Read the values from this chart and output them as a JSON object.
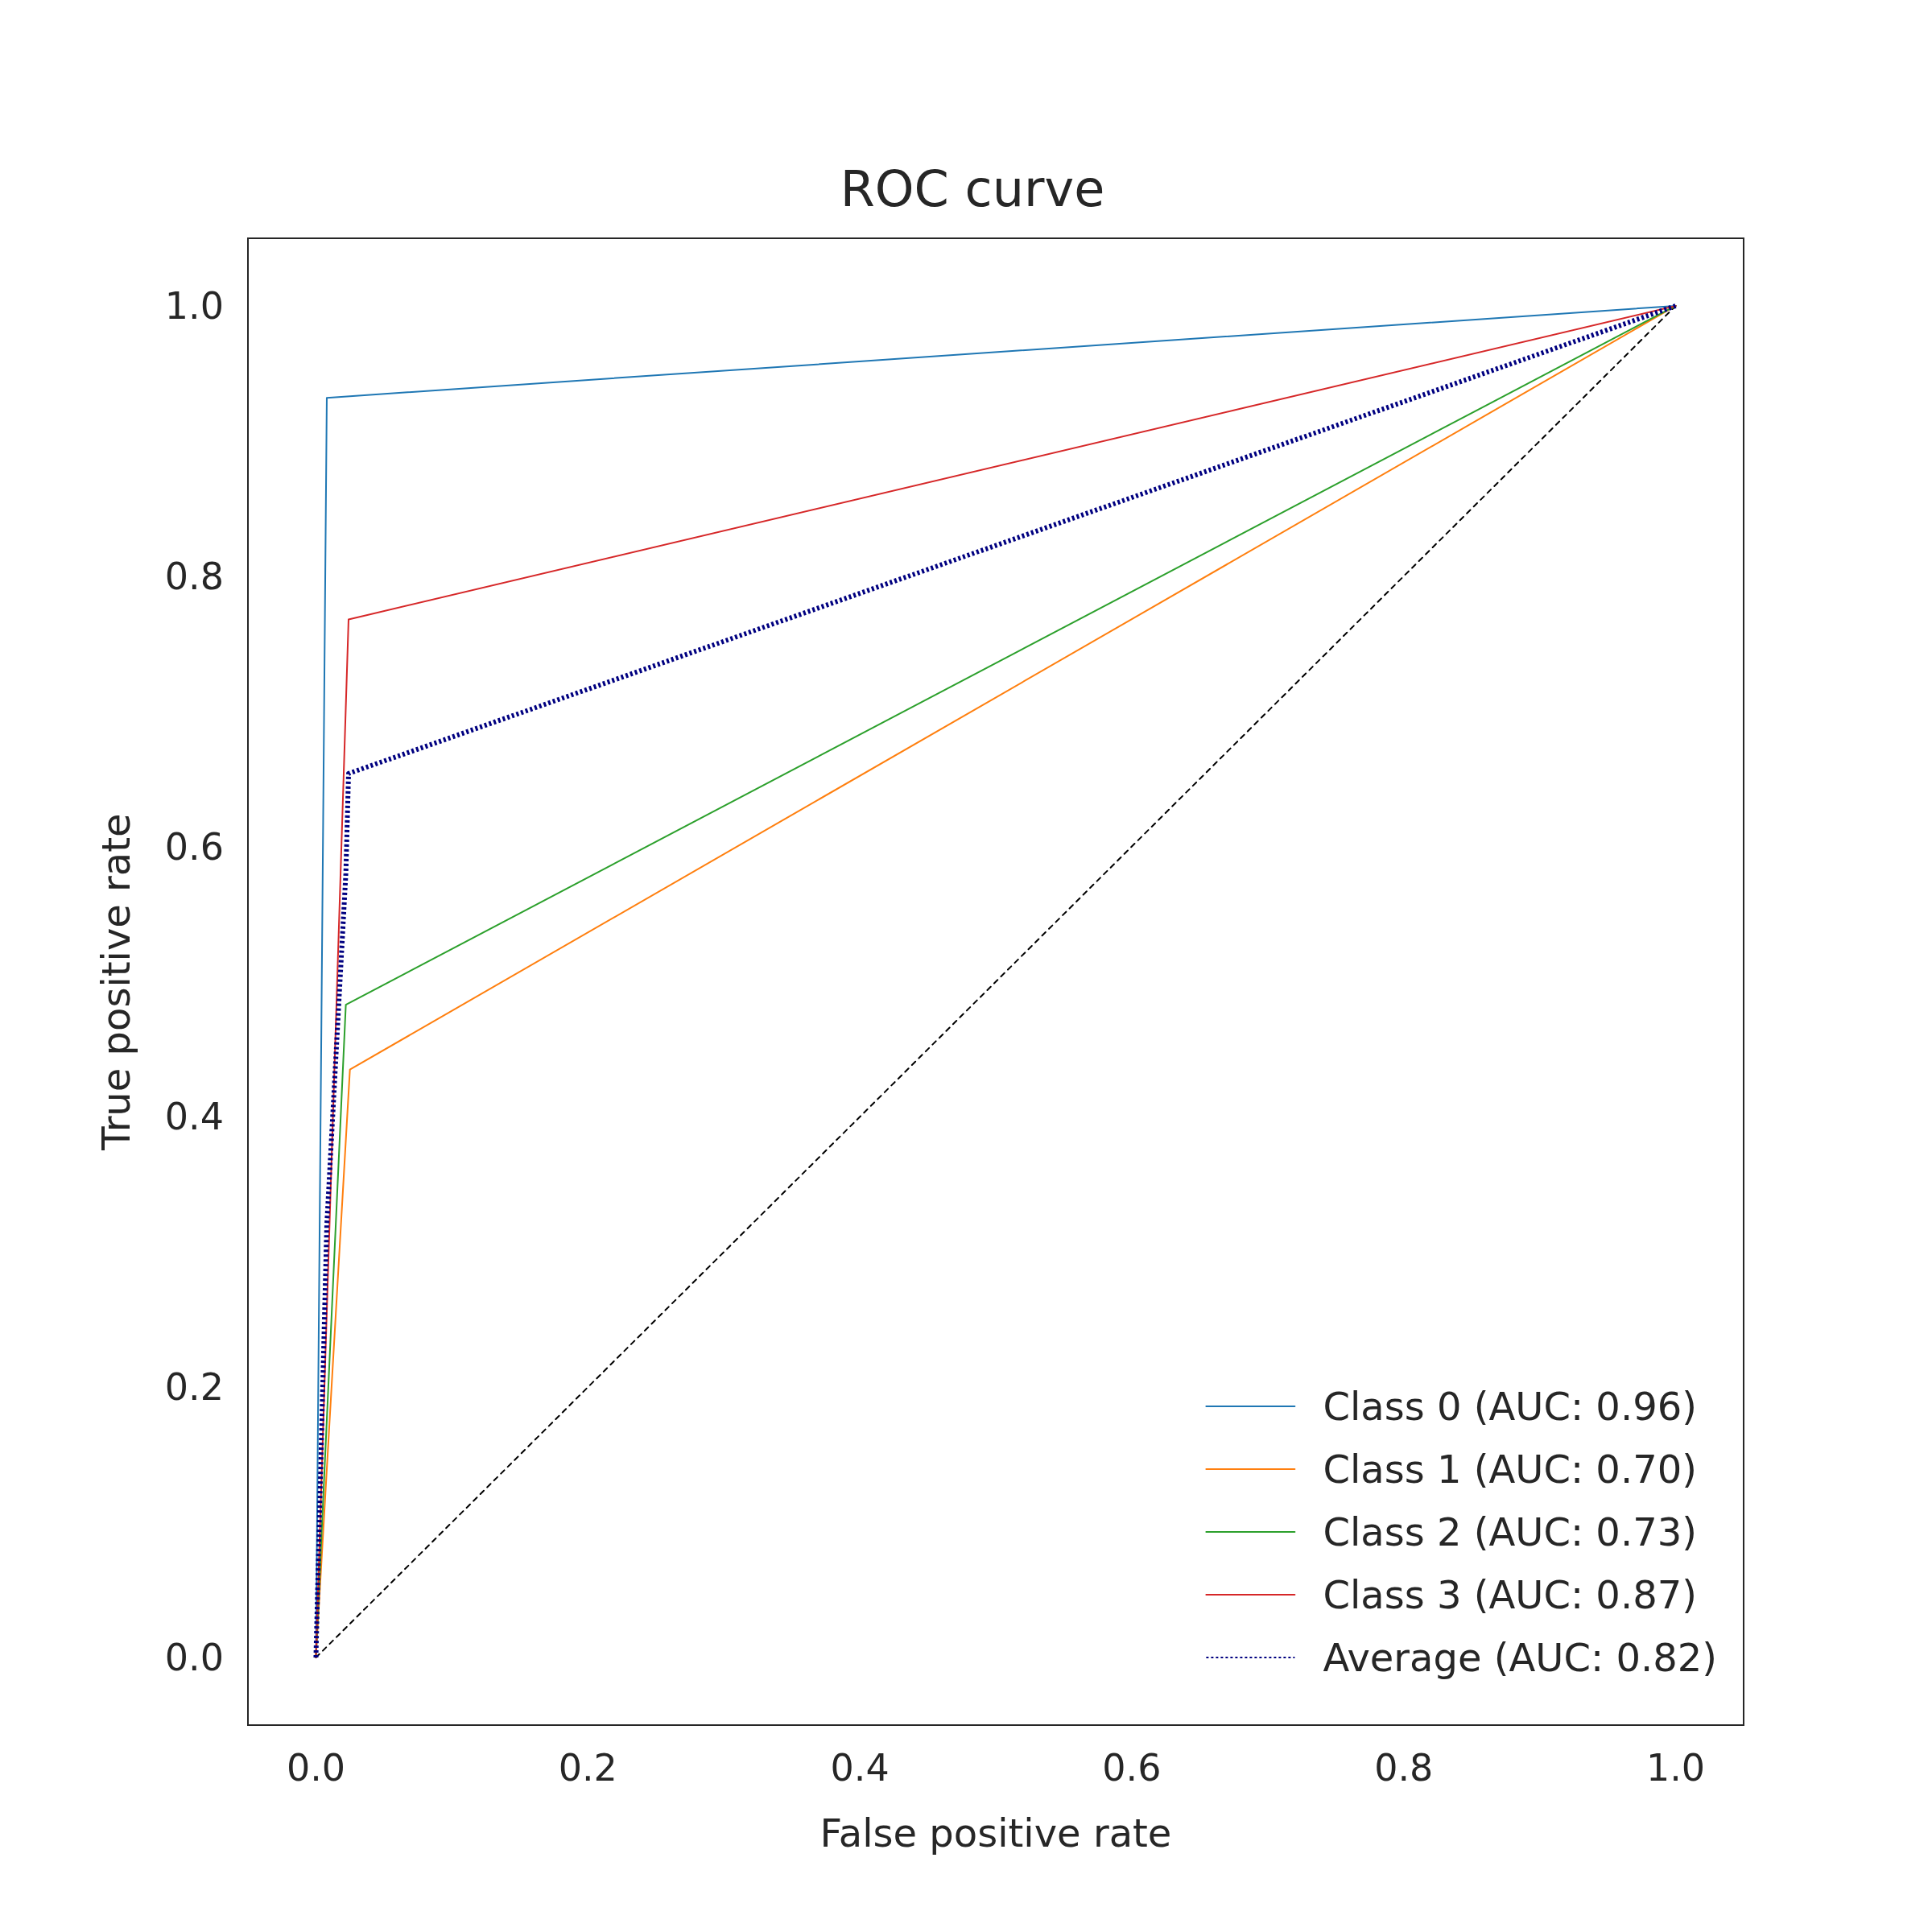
{
  "chart_data": {
    "type": "line",
    "title": "ROC curve",
    "xlabel": "False positive rate",
    "ylabel": "True positive rate",
    "xlim": [
      -0.05,
      1.05
    ],
    "ylim": [
      -0.05,
      1.05
    ],
    "xticks": [
      {
        "value": 0,
        "label": "0.0"
      },
      {
        "value": 0.2,
        "label": "0.2"
      },
      {
        "value": 0.4,
        "label": "0.4"
      },
      {
        "value": 0.6,
        "label": "0.6"
      },
      {
        "value": 0.8,
        "label": "0.8"
      },
      {
        "value": 1,
        "label": "1.0"
      }
    ],
    "yticks": [
      {
        "value": 0,
        "label": "0.0"
      },
      {
        "value": 0.2,
        "label": "0.2"
      },
      {
        "value": 0.4,
        "label": "0.4"
      },
      {
        "value": 0.6,
        "label": "0.6"
      },
      {
        "value": 0.8,
        "label": "0.8"
      },
      {
        "value": 1,
        "label": "1.0"
      }
    ],
    "grid": false,
    "legend": "bottom right",
    "marker": "none",
    "series": [
      {
        "name": "Class 0 (AUC: 0.96)",
        "color": "#1f77b4",
        "x": [
          0,
          0.008,
          1
        ],
        "values": [
          0,
          0.932,
          1
        ]
      },
      {
        "name": "Class 1 (AUC: 0.70)",
        "color": "#ff7f0e",
        "x": [
          0,
          0.025,
          1
        ],
        "values": [
          0,
          0.435,
          1
        ]
      },
      {
        "name": "Class 2 (AUC: 0.73)",
        "color": "#2ca02c",
        "x": [
          0,
          0.022,
          1
        ],
        "values": [
          0,
          0.483,
          1
        ]
      },
      {
        "name": "Class 3 (AUC: 0.87)",
        "color": "#d62728",
        "x": [
          0,
          0.024,
          1
        ],
        "values": [
          0,
          0.768,
          1
        ]
      },
      {
        "name": "Average (AUC: 0.82)",
        "color": "#000080",
        "line_style": "dotted",
        "x": [
          0,
          0.008,
          0.022,
          0.024,
          1
        ],
        "values": [
          0,
          0.32,
          0.58,
          0.654,
          1
        ]
      },
      {
        "color": "#000000",
        "line_style": "dashed",
        "x": [
          0,
          1
        ],
        "values": [
          0,
          1
        ]
      }
    ]
  }
}
